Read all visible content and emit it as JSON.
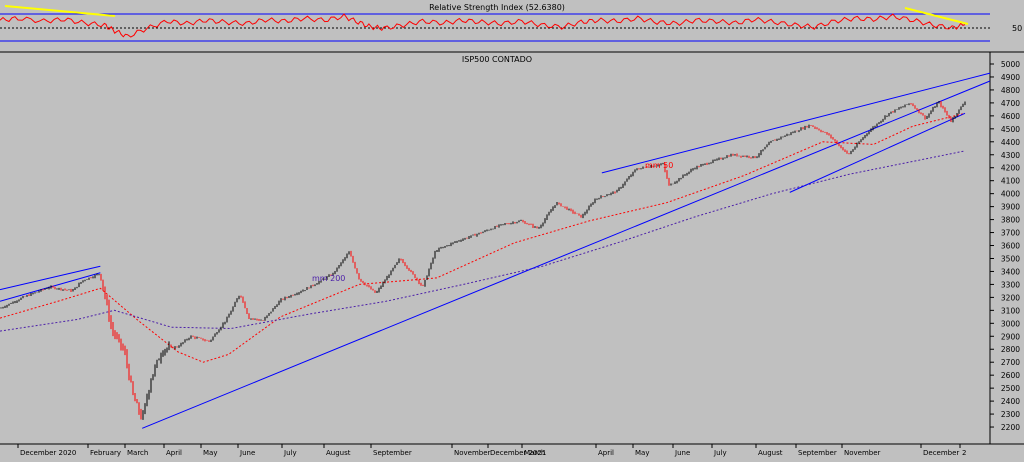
{
  "colors": {
    "background": "#c0c0c0",
    "up_candle": "#000000",
    "down_candle": "#ff0000",
    "rsi_line": "#ff0000",
    "trendline": "#0000ff",
    "mm50": "#ff0000",
    "mm200": "#4b1fa8",
    "rsi_divergence": "#ffff00"
  },
  "chart_data": [
    {
      "type": "line",
      "title": "Relative Strength Index (52.6380)",
      "series": [
        {
          "name": "Relative Strength Index",
          "x": [
            "2020-12-01",
            "2020-12-15",
            "2021-01-04",
            "2021-01-20",
            "2021-02-05",
            "2021-02-20",
            "2021-02-28",
            "2021-03-10",
            "2021-03-25",
            "2021-04-10",
            "2021-04-25",
            "2021-05-10",
            "2021-05-25",
            "2021-06-10",
            "2021-06-25",
            "2021-07-10",
            "2021-07-25",
            "2021-08-10",
            "2021-08-25",
            "2021-09-05",
            "2021-09-15",
            "2021-09-25",
            "2021-10-10",
            "2021-10-25",
            "2021-11-10",
            "2021-11-25",
            "2021-12-10",
            "2021-12-25",
            "2022-01-10",
            "2022-01-25",
            "2022-02-10",
            "2022-02-25",
            "2022-03-10",
            "2022-03-25",
            "2022-04-10",
            "2022-04-25",
            "2022-05-10",
            "2022-05-25",
            "2022-06-10",
            "2022-06-25",
            "2022-07-10",
            "2022-07-25",
            "2022-08-10",
            "2022-08-25",
            "2022-09-10",
            "2022-09-25",
            "2022-10-10",
            "2022-10-25",
            "2022-11-10",
            "2022-11-25",
            "2022-12-10",
            "2022-12-20"
          ],
          "values": [
            62,
            66,
            60,
            64,
            56,
            52,
            40,
            28,
            45,
            60,
            55,
            62,
            58,
            55,
            63,
            60,
            66,
            62,
            70,
            58,
            48,
            45,
            52,
            60,
            56,
            62,
            58,
            55,
            60,
            52,
            48,
            58,
            62,
            60,
            66,
            58,
            55,
            62,
            60,
            56,
            64,
            58,
            52,
            48,
            60,
            66,
            64,
            70,
            62,
            52,
            46,
            53
          ]
        }
      ],
      "ylim": [
        0,
        100
      ],
      "reference_lines": [
        70,
        50,
        30
      ],
      "tick_labels": [
        "50"
      ]
    },
    {
      "type": "candlestick",
      "title": "ISP500 CONTADO",
      "xlabel": "",
      "ylabel": "",
      "ylim": [
        2100,
        5000
      ],
      "yticks": [
        2200,
        2300,
        2400,
        2500,
        2600,
        2700,
        2800,
        2900,
        3000,
        3100,
        3200,
        3300,
        3400,
        3500,
        3600,
        3700,
        3800,
        3900,
        4000,
        4100,
        4200,
        4300,
        4400,
        4500,
        4600,
        4700,
        4800,
        4900,
        5000
      ],
      "x_tick_labels": [
        "December 2020",
        "February",
        "March",
        "April",
        "May",
        "June",
        "July",
        "August",
        "September",
        "November",
        "December 2021",
        "March",
        "April",
        "May",
        "June",
        "July",
        "August",
        "September",
        "November",
        "December",
        "2"
      ],
      "close_path": {
        "dates": [
          "2019-12-02",
          "2019-12-20",
          "2020-01-10",
          "2020-01-28",
          "2020-02-05",
          "2020-02-19",
          "2020-02-28",
          "2020-03-09",
          "2020-03-16",
          "2020-03-23",
          "2020-03-30",
          "2020-04-08",
          "2020-04-20",
          "2020-04-30",
          "2020-05-15",
          "2020-05-29",
          "2020-06-08",
          "2020-06-15",
          "2020-06-26",
          "2020-07-10",
          "2020-07-31",
          "2020-08-20",
          "2020-09-02",
          "2020-09-10",
          "2020-09-23",
          "2020-10-12",
          "2020-10-30",
          "2020-11-09",
          "2020-11-25",
          "2020-12-15",
          "2020-12-31",
          "2021-01-15",
          "2021-01-29",
          "2021-02-12",
          "2021-03-04",
          "2021-03-15",
          "2021-04-01",
          "2021-04-16",
          "2021-05-07",
          "2021-05-12",
          "2021-06-01",
          "2021-06-30",
          "2021-07-19",
          "2021-07-31",
          "2021-08-31",
          "2021-09-15",
          "2021-09-30",
          "2021-10-15",
          "2021-11-01",
          "2021-11-18",
          "2021-11-30",
          "2021-12-10",
          "2021-12-20",
          "2021-12-31"
        ],
        "values": [
          3115,
          3200,
          3280,
          3250,
          3330,
          3385,
          2950,
          2780,
          2430,
          2260,
          2580,
          2800,
          2820,
          2900,
          2860,
          3040,
          3230,
          3040,
          3020,
          3180,
          3270,
          3380,
          3550,
          3340,
          3230,
          3500,
          3280,
          3560,
          3630,
          3700,
          3760,
          3790,
          3730,
          3930,
          3820,
          3960,
          4020,
          4190,
          4230,
          4060,
          4200,
          4300,
          4280,
          4400,
          4530,
          4450,
          4300,
          4470,
          4620,
          4700,
          4580,
          4710,
          4560,
          4710
        ]
      },
      "overlays": [
        {
          "name": "mm 50",
          "dates": [
            "2019-12-02",
            "2020-01-20",
            "2020-02-19",
            "2020-03-20",
            "2020-04-20",
            "2020-05-10",
            "2020-05-30",
            "2020-07-10",
            "2020-09-10",
            "2020-11-10",
            "2021-01-10",
            "2021-03-10",
            "2021-05-10",
            "2021-07-10",
            "2021-09-10",
            "2021-10-20",
            "2021-11-20",
            "2021-12-31"
          ],
          "values": [
            3040,
            3180,
            3270,
            3020,
            2780,
            2700,
            2760,
            3050,
            3300,
            3350,
            3620,
            3790,
            3930,
            4140,
            4400,
            4380,
            4520,
            4620
          ]
        },
        {
          "name": "mm 200",
          "dates": [
            "2019-12-02",
            "2020-02-01",
            "2020-03-01",
            "2020-04-15",
            "2020-06-01",
            "2020-08-01",
            "2020-10-01",
            "2020-12-01",
            "2021-02-01",
            "2021-04-01",
            "2021-06-01",
            "2021-08-01",
            "2021-10-01",
            "2021-12-31"
          ],
          "values": [
            2940,
            3030,
            3100,
            2970,
            2960,
            3070,
            3170,
            3300,
            3440,
            3620,
            3820,
            4000,
            4150,
            4330
          ]
        }
      ],
      "trendlines": [
        {
          "from": [
            "2020-03-23",
            2190
          ],
          "to": [
            "2021-12-31",
            4790
          ]
        },
        {
          "from": [
            "2019-12-02",
            3260
          ],
          "to": [
            "2020-02-19",
            3440
          ]
        },
        {
          "from": [
            "2019-12-02",
            3170
          ],
          "to": [
            "2020-02-19",
            3390
          ]
        },
        {
          "from": [
            "2021-03-20",
            4160
          ],
          "to": [
            "2021-12-31",
            4880
          ]
        },
        {
          "from": [
            "2021-08-15",
            4010
          ],
          "to": [
            "2021-12-31",
            4620
          ]
        }
      ],
      "annotations": [
        "mm 50",
        "mm 200"
      ]
    }
  ],
  "rsi_label": "Relative Strength Index (52.6380)",
  "rsi_tick": "50",
  "price_title": "ISP500 CONTADO",
  "mm50_label": "mm 50",
  "mm200_label": "mm 200"
}
